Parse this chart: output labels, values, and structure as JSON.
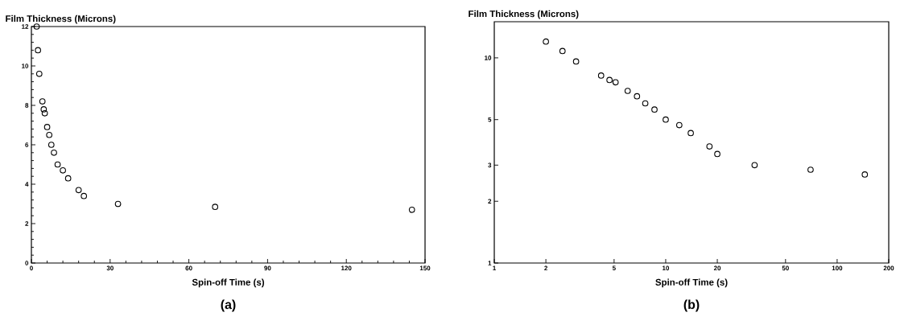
{
  "chart_data": [
    {
      "type": "scatter",
      "ylabel": "Film Thickness (Microns)",
      "xlabel": "Spin-off Time (s)",
      "annotations": [
        "(a)"
      ],
      "x": [
        2,
        2.5,
        3,
        4.2,
        4.7,
        5.1,
        6,
        6.8,
        7.6,
        8.6,
        10,
        12,
        14,
        18,
        20,
        33,
        70,
        145
      ],
      "values": [
        12,
        10.8,
        9.6,
        8.2,
        7.8,
        7.6,
        6.9,
        6.5,
        6.0,
        5.6,
        5.0,
        4.7,
        4.3,
        3.7,
        3.4,
        3.0,
        2.85,
        2.7
      ],
      "color": "#000000",
      "marker": "circle",
      "xlim": [
        0,
        150
      ],
      "ylim": [
        0,
        12
      ],
      "xticks": [
        0,
        30,
        60,
        90,
        120,
        150
      ],
      "yticks": [
        0,
        2,
        4,
        6,
        8,
        10,
        12
      ]
    },
    {
      "type": "scatter",
      "ylabel": "Film Thickness (Microns)",
      "xlabel": "Spin-off Time (s)",
      "annotations": [
        "(b)"
      ],
      "x": [
        2,
        2.5,
        3,
        4.2,
        4.7,
        5.1,
        6,
        6.8,
        7.6,
        8.6,
        10,
        12,
        14,
        18,
        20,
        33,
        70,
        145
      ],
      "values": [
        12,
        10.8,
        9.6,
        8.2,
        7.8,
        7.6,
        6.9,
        6.5,
        6.0,
        5.6,
        5.0,
        4.7,
        4.3,
        3.7,
        3.4,
        3.0,
        2.85,
        2.7
      ],
      "color": "#000000",
      "marker": "circle",
      "log": "xy",
      "xlim": [
        1,
        200
      ],
      "ylim": [
        1,
        15
      ],
      "xticks": [
        1,
        2,
        5,
        10,
        20,
        50,
        100,
        200
      ],
      "yticks": [
        1,
        2,
        3,
        5,
        10
      ]
    }
  ]
}
